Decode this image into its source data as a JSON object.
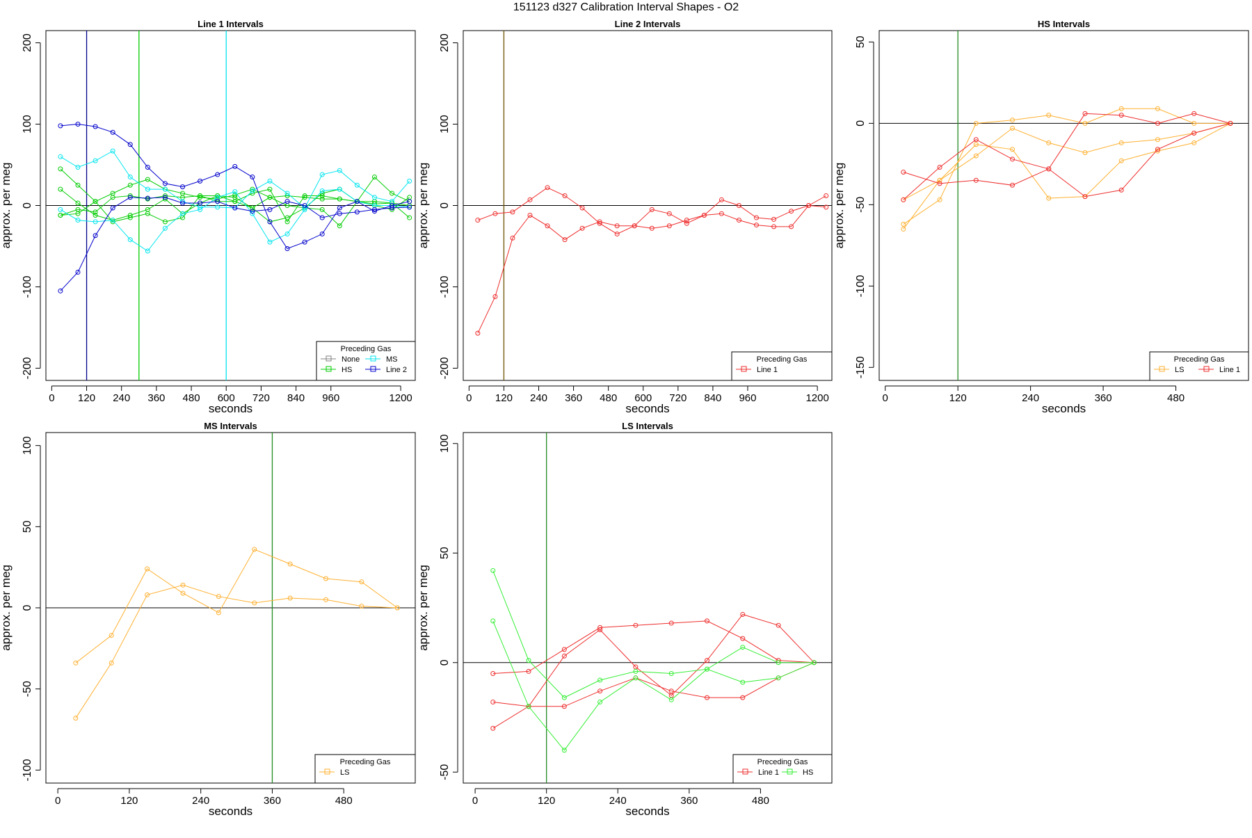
{
  "figure_title": "151123   d327   Calibration Interval Shapes - O2",
  "chart_data": [
    {
      "type": "line",
      "title": "Line 1 Intervals",
      "xlabel": "seconds",
      "ylabel": "approx. per meg",
      "xlim": [
        -20,
        1250
      ],
      "ylim": [
        -215,
        215
      ],
      "xticks": [
        0,
        120,
        240,
        360,
        480,
        600,
        720,
        840,
        960,
        1200
      ],
      "yticks": [
        -200,
        -100,
        0,
        100,
        200
      ],
      "hline": 0,
      "vlines": [
        {
          "x": 120,
          "color": "#00008b"
        },
        {
          "x": 300,
          "color": "#00cc00"
        },
        {
          "x": 600,
          "color": "#00e5ee"
        }
      ],
      "legend": {
        "title": "Preceding Gas",
        "position": "bottom-right",
        "columns": 2,
        "entries": [
          {
            "name": "None",
            "color": "#808080"
          },
          {
            "name": "MS",
            "color": "#00e5ee"
          },
          {
            "name": "HS",
            "color": "#00cc00"
          },
          {
            "name": "Line 2",
            "color": "#0000cc"
          }
        ]
      },
      "series": [
        {
          "name": "HS",
          "color": "#00cc00",
          "x": [
            30,
            90,
            150,
            210,
            270,
            330,
            390,
            450,
            510,
            570,
            630,
            690,
            750,
            810,
            870,
            930,
            990,
            1050,
            1110,
            1170,
            1230
          ],
          "y": [
            45,
            25,
            5,
            15,
            25,
            32,
            20,
            15,
            10,
            8,
            13,
            20,
            10,
            12,
            10,
            8,
            8,
            5,
            2,
            3,
            0
          ]
        },
        {
          "name": "HS",
          "color": "#00cc00",
          "x": [
            30,
            90,
            150,
            210,
            270,
            330,
            390,
            450,
            510,
            570,
            630,
            690,
            750,
            810,
            870,
            930,
            990,
            1050,
            1110,
            1170,
            1230
          ],
          "y": [
            20,
            3,
            -12,
            -18,
            -12,
            -5,
            8,
            -10,
            3,
            12,
            10,
            -3,
            10,
            0,
            -3,
            15,
            20,
            5,
            5,
            3,
            -15
          ]
        },
        {
          "name": "HS",
          "color": "#00cc00",
          "x": [
            30,
            90,
            150,
            210,
            270,
            330,
            390,
            450,
            510,
            570,
            630,
            690,
            750,
            810,
            870,
            930,
            990,
            1050,
            1110,
            1170,
            1230
          ],
          "y": [
            -12,
            -5,
            -8,
            10,
            12,
            8,
            12,
            10,
            12,
            5,
            5,
            -3,
            -20,
            -15,
            -3,
            -5,
            -25,
            5,
            35,
            15,
            5
          ]
        },
        {
          "name": "HS",
          "color": "#00cc00",
          "x": [
            30,
            90,
            150,
            210,
            270,
            330,
            390,
            450,
            510,
            570,
            630,
            690,
            750,
            810,
            870,
            930,
            990,
            1050,
            1110,
            1170,
            1230
          ],
          "y": [
            -12,
            -10,
            5,
            -20,
            -15,
            -10,
            -20,
            -15,
            12,
            12,
            5,
            15,
            20,
            -20,
            12,
            12,
            8,
            5,
            0,
            -5,
            10
          ]
        },
        {
          "name": "MS",
          "color": "#00e5ee",
          "x": [
            30,
            90,
            150,
            210,
            270,
            330,
            390,
            450,
            510,
            570,
            630,
            690,
            750,
            810,
            870,
            930,
            990,
            1050,
            1110,
            1170,
            1230
          ],
          "y": [
            60,
            47,
            55,
            67,
            35,
            20,
            20,
            5,
            -2,
            -2,
            -3,
            18,
            30,
            15,
            -3,
            38,
            43,
            25,
            10,
            5,
            30
          ]
        },
        {
          "name": "MS",
          "color": "#00e5ee",
          "x": [
            30,
            90,
            150,
            210,
            270,
            330,
            390,
            450,
            510,
            570,
            630,
            690,
            750,
            810,
            870,
            930,
            990,
            1050,
            1110,
            1170,
            1230
          ],
          "y": [
            -5,
            -18,
            -20,
            -18,
            -42,
            -56,
            -28,
            -10,
            -5,
            10,
            17,
            -10,
            -45,
            -35,
            -5,
            18,
            20,
            5,
            0,
            0,
            -2
          ]
        },
        {
          "name": "Line 2",
          "color": "#0000cc",
          "x": [
            30,
            90,
            150,
            210,
            270,
            330,
            390,
            450,
            510,
            570,
            630,
            690,
            750,
            810,
            870,
            930,
            990,
            1050,
            1110,
            1170,
            1230
          ],
          "y": [
            98,
            100,
            97,
            90,
            75,
            47,
            27,
            23,
            30,
            38,
            48,
            35,
            -20,
            -53,
            -45,
            -35,
            -3,
            5,
            -7,
            0,
            5
          ]
        },
        {
          "name": "Line 2",
          "color": "#0000cc",
          "x": [
            30,
            90,
            150,
            210,
            270,
            330,
            390,
            450,
            510,
            570,
            630,
            690,
            750,
            810,
            870,
            930,
            990,
            1050,
            1110,
            1170,
            1230
          ],
          "y": [
            -105,
            -82,
            -37,
            -3,
            10,
            9,
            10,
            3,
            3,
            5,
            -3,
            -7,
            -5,
            5,
            0,
            -15,
            -10,
            -8,
            -5,
            -3,
            -2
          ]
        }
      ]
    },
    {
      "type": "line",
      "title": "Line 2 Intervals",
      "xlabel": "seconds",
      "ylabel": "approx. per meg",
      "xlim": [
        -20,
        1250
      ],
      "ylim": [
        -215,
        215
      ],
      "xticks": [
        0,
        120,
        240,
        360,
        480,
        600,
        720,
        840,
        960,
        1200
      ],
      "yticks": [
        -200,
        -100,
        0,
        100,
        200
      ],
      "hline": 0,
      "vlines": [
        {
          "x": 120,
          "color": "#6b5200"
        }
      ],
      "legend": {
        "title": "Preceding Gas",
        "position": "bottom-right",
        "columns": 1,
        "entries": [
          {
            "name": "Line 1",
            "color": "#ee2c2c"
          }
        ]
      },
      "series": [
        {
          "name": "Line 1",
          "color": "#ee2c2c",
          "x": [
            30,
            90,
            150,
            210,
            270,
            330,
            390,
            450,
            510,
            570,
            630,
            690,
            750,
            810,
            870,
            930,
            990,
            1050,
            1110,
            1170,
            1230
          ],
          "y": [
            -18,
            -10,
            -8,
            7,
            22,
            12,
            -3,
            -22,
            -35,
            -25,
            -5,
            -10,
            -22,
            -12,
            -10,
            -18,
            -24,
            -26,
            -26,
            0,
            -2
          ]
        },
        {
          "name": "Line 1",
          "color": "#ee2c2c",
          "x": [
            30,
            90,
            150,
            210,
            270,
            330,
            390,
            450,
            510,
            570,
            630,
            690,
            750,
            810,
            870,
            930,
            990,
            1050,
            1110,
            1170,
            1230
          ],
          "y": [
            -157,
            -112,
            -40,
            -12,
            -25,
            -42,
            -28,
            -20,
            -25,
            -25,
            -28,
            -25,
            -18,
            -12,
            7,
            0,
            -15,
            -17,
            -7,
            0,
            12
          ]
        }
      ]
    },
    {
      "type": "line",
      "title": "HS Intervals",
      "xlabel": "seconds",
      "ylabel": "approx. per meg",
      "xlim": [
        -10,
        600
      ],
      "ylim": [
        -158,
        57
      ],
      "xticks": [
        0,
        120,
        240,
        360,
        480
      ],
      "yticks": [
        -150,
        -100,
        -50,
        0,
        50
      ],
      "hline": 0,
      "vlines": [
        {
          "x": 120,
          "color": "#228b22"
        }
      ],
      "legend": {
        "title": "Preceding Gas",
        "position": "bottom-right",
        "columns": 2,
        "entries": [
          {
            "name": "LS",
            "color": "#ffb030"
          },
          {
            "name": "Line 1",
            "color": "#ee2c2c"
          }
        ]
      },
      "series": [
        {
          "name": "LS",
          "color": "#ffb030",
          "x": [
            30,
            90,
            150,
            210,
            270,
            330,
            390,
            450,
            510,
            570
          ],
          "y": [
            -62,
            -47,
            0,
            2,
            5,
            0,
            9,
            9,
            0,
            0
          ]
        },
        {
          "name": "LS",
          "color": "#ffb030",
          "x": [
            30,
            90,
            150,
            210,
            270,
            330,
            390,
            450,
            510,
            570
          ],
          "y": [
            -65,
            -35,
            -13,
            -16,
            -46,
            -45,
            -23,
            -17,
            -12,
            0
          ]
        },
        {
          "name": "LS",
          "color": "#ffb030",
          "x": [
            30,
            90,
            150,
            210,
            270,
            330,
            390,
            450,
            510,
            570
          ],
          "y": [
            -47,
            -35,
            -20,
            -3,
            -12,
            -18,
            -12,
            -10,
            -6,
            0
          ]
        },
        {
          "name": "Line 1",
          "color": "#ee2c2c",
          "x": [
            30,
            90,
            150,
            210,
            270,
            330,
            390,
            450,
            510,
            570
          ],
          "y": [
            -30,
            -37,
            -35,
            -38,
            -28,
            6,
            5,
            0,
            6,
            0
          ]
        },
        {
          "name": "Line 1",
          "color": "#ee2c2c",
          "x": [
            30,
            90,
            150,
            210,
            270,
            330,
            390,
            450,
            510,
            570
          ],
          "y": [
            -47,
            -27,
            -10,
            -22,
            -28,
            -45,
            -41,
            -16,
            -6,
            0
          ]
        }
      ]
    },
    {
      "type": "line",
      "title": "MS Intervals",
      "xlabel": "seconds",
      "ylabel": "approx. per meg",
      "xlim": [
        -20,
        600
      ],
      "ylim": [
        -108,
        108
      ],
      "xticks": [
        0,
        120,
        240,
        360,
        480
      ],
      "yticks": [
        -100,
        -50,
        0,
        50,
        100
      ],
      "hline": 0,
      "vlines": [
        {
          "x": 360,
          "color": "#228b22"
        }
      ],
      "legend": {
        "title": "Preceding Gas",
        "position": "bottom-right",
        "columns": 1,
        "entries": [
          {
            "name": "LS",
            "color": "#ffb030"
          }
        ]
      },
      "series": [
        {
          "name": "LS",
          "color": "#ffb030",
          "x": [
            30,
            90,
            150,
            210,
            270,
            330,
            390,
            450,
            510,
            570
          ],
          "y": [
            -34,
            -17,
            24,
            9,
            -3,
            36,
            27,
            18,
            16,
            0
          ]
        },
        {
          "name": "LS",
          "color": "#ffb030",
          "x": [
            30,
            90,
            150,
            210,
            270,
            330,
            390,
            450,
            510,
            570
          ],
          "y": [
            -68,
            -34,
            8,
            14,
            7,
            3,
            6,
            5,
            1,
            0
          ]
        }
      ]
    },
    {
      "type": "line",
      "title": "LS Intervals",
      "xlabel": "seconds",
      "ylabel": "approx. per meg",
      "xlim": [
        -20,
        600
      ],
      "ylim": [
        -55,
        105
      ],
      "xticks": [
        0,
        120,
        240,
        360,
        480
      ],
      "yticks": [
        -50,
        0,
        50,
        100
      ],
      "hline": 0,
      "vlines": [
        {
          "x": 120,
          "color": "#228b22"
        }
      ],
      "legend": {
        "title": "Preceding Gas",
        "position": "bottom-right",
        "columns": 2,
        "entries": [
          {
            "name": "Line 1",
            "color": "#ee2c2c"
          },
          {
            "name": "HS",
            "color": "#33ee33"
          }
        ]
      },
      "series": [
        {
          "name": "Line 1",
          "color": "#ee2c2c",
          "x": [
            30,
            90,
            150,
            210,
            270,
            330,
            390,
            450,
            510,
            570
          ],
          "y": [
            -5,
            -4,
            6,
            16,
            17,
            18,
            19,
            11,
            1,
            0
          ]
        },
        {
          "name": "Line 1",
          "color": "#ee2c2c",
          "x": [
            30,
            90,
            150,
            210,
            270,
            330,
            390,
            450,
            510,
            570
          ],
          "y": [
            -18,
            -20,
            -20,
            -13,
            -7,
            -13,
            -16,
            -16,
            -7,
            0
          ]
        },
        {
          "name": "Line 1",
          "color": "#ee2c2c",
          "x": [
            30,
            90,
            150,
            210,
            270,
            330,
            390,
            450,
            510,
            570
          ],
          "y": [
            -30,
            -20,
            3,
            15,
            -2,
            -15,
            1,
            22,
            17,
            0
          ]
        },
        {
          "name": "HS",
          "color": "#33ee33",
          "x": [
            30,
            90,
            150,
            210,
            270,
            330,
            390,
            450,
            510,
            570
          ],
          "y": [
            42,
            1,
            -16,
            -8,
            -4,
            -5,
            -3,
            7,
            0,
            0
          ]
        },
        {
          "name": "HS",
          "color": "#33ee33",
          "x": [
            30,
            90,
            150,
            210,
            270,
            330,
            390,
            450,
            510,
            570
          ],
          "y": [
            19,
            -20,
            -40,
            -18,
            -7,
            -17,
            -3,
            -9,
            -7,
            0
          ]
        }
      ]
    }
  ]
}
